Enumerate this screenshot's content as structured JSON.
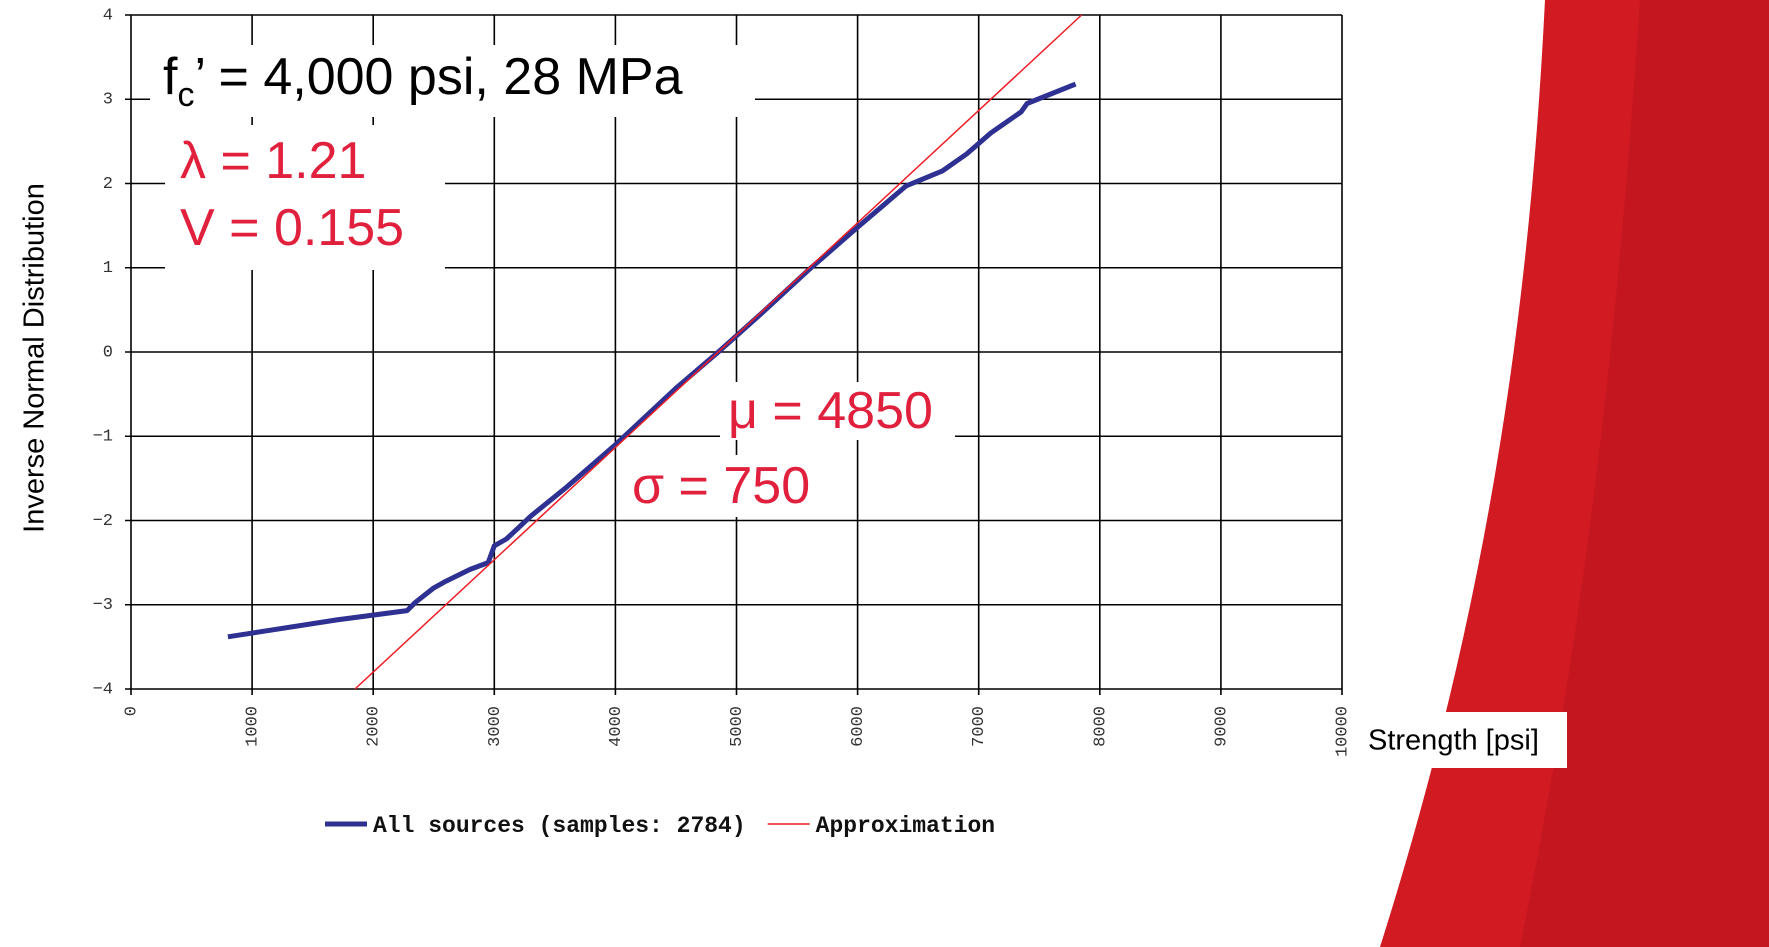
{
  "chart_data": {
    "type": "line",
    "title_main": "f",
    "title_sub": "c",
    "title_rest": "’ = 4,000 psi, 28 MPa",
    "annotations": [
      "λ = 1.21",
      "V = 0.155",
      "μ = 4850",
      "σ = 750"
    ],
    "annotation_color": "#e0203c",
    "xlabel": "Strength [psi]",
    "ylabel": "Inverse Normal Distribution",
    "xlim": [
      0,
      10000
    ],
    "xticks": [
      0,
      1000,
      2000,
      3000,
      4000,
      5000,
      6000,
      7000,
      8000,
      9000,
      10000
    ],
    "ylim": [
      -4,
      4
    ],
    "yticks": [
      {
        "value": -4,
        "label": "−4"
      },
      {
        "value": -3,
        "label": "−3"
      },
      {
        "value": -2,
        "label": "−2"
      },
      {
        "value": -1,
        "label": "−1"
      },
      0,
      1,
      2,
      3,
      4
    ],
    "grid": true,
    "legend": "bottom",
    "series": [
      {
        "name": "All sources (samples: 2784)",
        "color": "#2e3192",
        "x": [
          800,
          1700,
          2280,
          2350,
          2500,
          2600,
          2800,
          2950,
          3000,
          3100,
          3300,
          3600,
          4000,
          4500,
          4850,
          5200,
          5600,
          6000,
          6400,
          6700,
          6900,
          7100,
          7350,
          7400,
          7800
        ],
        "values": [
          -3.38,
          -3.18,
          -3.07,
          -2.97,
          -2.8,
          -2.72,
          -2.58,
          -2.5,
          -2.3,
          -2.22,
          -1.95,
          -1.6,
          -1.1,
          -0.43,
          0,
          0.45,
          0.98,
          1.48,
          1.97,
          2.15,
          2.35,
          2.6,
          2.85,
          2.95,
          3.18
        ]
      },
      {
        "name": "Approximation",
        "color": "#ee1c25",
        "x": [
          1850,
          7850
        ],
        "values": [
          -4,
          4
        ]
      }
    ]
  }
}
